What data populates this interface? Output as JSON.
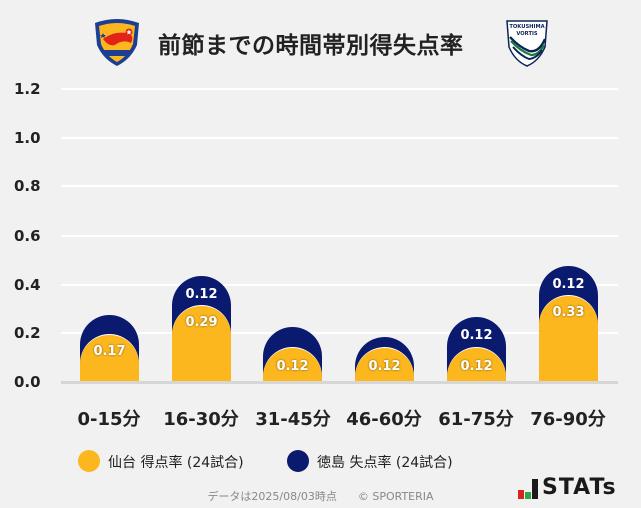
{
  "header": {
    "title": "前節までの時間帯別得失点率",
    "home_logo": "vegalta-sendai-crest-icon",
    "away_logo": "tokushima-vortis-crest-icon",
    "away_logo_text": "TOKUSHIMA VORTIS"
  },
  "colors": {
    "home": "#fdb71e",
    "away": "#0a1a6e",
    "background": "#f1f1f1",
    "grid": "#ffffff"
  },
  "chart_data": {
    "type": "bar",
    "stacked": true,
    "title": "前節までの時間帯別得失点率",
    "xlabel": "",
    "ylabel": "",
    "ylim": [
      0,
      1.2
    ],
    "yticks": [
      "1.2",
      "1.0",
      "0.8",
      "0.6",
      "0.4",
      "0.2",
      "0.0"
    ],
    "grid": true,
    "legend_position": "bottom",
    "categories": [
      "0-15分",
      "16-30分",
      "31-45分",
      "46-60分",
      "61-75分",
      "76-90分"
    ],
    "series": [
      {
        "name": "仙台 得点率 (24試合)",
        "color": "#fdb71e",
        "values": [
          0.17,
          0.29,
          0.12,
          0.12,
          0.12,
          0.33
        ]
      },
      {
        "name": "徳島 失点率 (24試合)",
        "color": "#0a1a6e",
        "values": [
          0.08,
          0.12,
          0.08,
          0.04,
          0.12,
          0.12
        ]
      }
    ],
    "data_labels": {
      "home": [
        "0.17",
        "0.29",
        "0.12",
        "0.12",
        "0.12",
        "0.33"
      ],
      "away": [
        "",
        "0.12",
        "",
        "",
        "0.12",
        "0.12"
      ]
    }
  },
  "legend": {
    "items": [
      {
        "label": "仙台 得点率 (24試合)",
        "color": "#fdb71e"
      },
      {
        "label": "徳島 失点率 (24試合)",
        "color": "#0a1a6e"
      }
    ]
  },
  "footer": {
    "asof": "データは2025/08/03時点",
    "copyright": "© SPORTERIA"
  },
  "brand": {
    "stats_label": "STATs"
  }
}
